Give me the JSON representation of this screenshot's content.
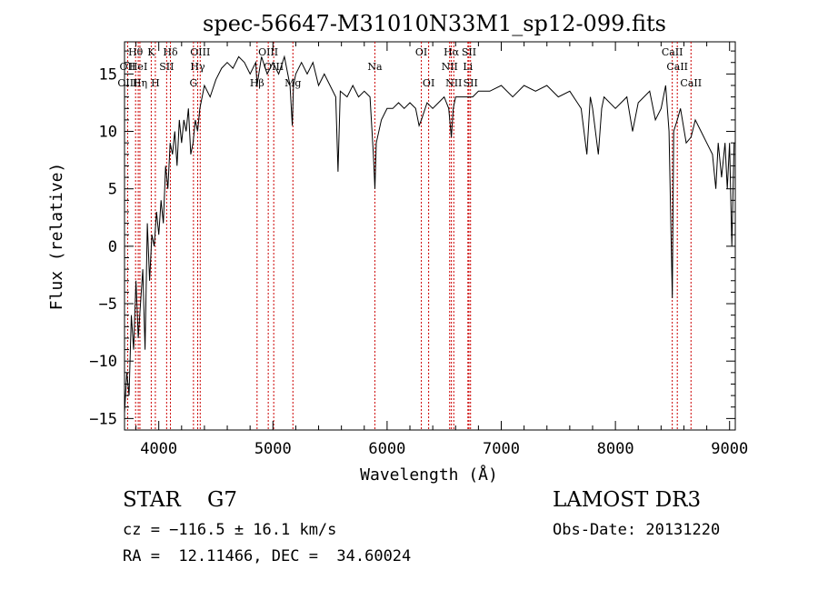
{
  "chart_data": {
    "type": "line",
    "title": "spec-56647-M31010N33M1_sp12-099.fits",
    "xlabel": "Wavelength (Å)",
    "ylabel": "Flux (relative)",
    "xlim": [
      3700,
      9050
    ],
    "ylim": [
      -16,
      17.8
    ],
    "xticks": [
      4000,
      5000,
      6000,
      7000,
      8000,
      9000
    ],
    "yticks": [
      -15,
      -10,
      -5,
      0,
      5,
      10,
      15
    ],
    "x_minor_step": 200,
    "y_minor_step": 1,
    "grid": false,
    "line_color": "#000000",
    "marker_color": "#cc0000",
    "spectrum": [
      [
        3700,
        -14.5
      ],
      [
        3720,
        -11
      ],
      [
        3740,
        -13
      ],
      [
        3760,
        -6
      ],
      [
        3780,
        -9
      ],
      [
        3800,
        -3
      ],
      [
        3820,
        -8
      ],
      [
        3840,
        -5
      ],
      [
        3860,
        -2
      ],
      [
        3880,
        -9
      ],
      [
        3900,
        2
      ],
      [
        3920,
        -3
      ],
      [
        3940,
        1
      ],
      [
        3960,
        0
      ],
      [
        3980,
        3
      ],
      [
        4000,
        1
      ],
      [
        4020,
        4
      ],
      [
        4040,
        2
      ],
      [
        4060,
        7
      ],
      [
        4080,
        5
      ],
      [
        4100,
        9
      ],
      [
        4120,
        8
      ],
      [
        4140,
        10
      ],
      [
        4160,
        7
      ],
      [
        4180,
        11
      ],
      [
        4200,
        9
      ],
      [
        4220,
        11
      ],
      [
        4240,
        10
      ],
      [
        4260,
        12
      ],
      [
        4280,
        8
      ],
      [
        4300,
        9
      ],
      [
        4320,
        11
      ],
      [
        4340,
        10
      ],
      [
        4360,
        12
      ],
      [
        4380,
        13
      ],
      [
        4400,
        14
      ],
      [
        4450,
        13
      ],
      [
        4500,
        14.5
      ],
      [
        4550,
        15.5
      ],
      [
        4600,
        16
      ],
      [
        4650,
        15.5
      ],
      [
        4700,
        16.5
      ],
      [
        4750,
        16
      ],
      [
        4800,
        15
      ],
      [
        4850,
        16
      ],
      [
        4861,
        14
      ],
      [
        4900,
        16.5
      ],
      [
        4950,
        15
      ],
      [
        5000,
        16
      ],
      [
        5050,
        15
      ],
      [
        5100,
        16.5
      ],
      [
        5150,
        14
      ],
      [
        5170,
        10.5
      ],
      [
        5180,
        14
      ],
      [
        5200,
        15
      ],
      [
        5250,
        16
      ],
      [
        5300,
        15
      ],
      [
        5350,
        16
      ],
      [
        5400,
        14
      ],
      [
        5450,
        15
      ],
      [
        5500,
        14
      ],
      [
        5550,
        13
      ],
      [
        5570,
        6.5
      ],
      [
        5590,
        13.5
      ],
      [
        5650,
        13
      ],
      [
        5700,
        14
      ],
      [
        5750,
        13
      ],
      [
        5800,
        13.5
      ],
      [
        5850,
        13
      ],
      [
        5880,
        8
      ],
      [
        5893,
        5
      ],
      [
        5905,
        9
      ],
      [
        5950,
        11
      ],
      [
        6000,
        12
      ],
      [
        6050,
        12
      ],
      [
        6100,
        12.5
      ],
      [
        6150,
        12
      ],
      [
        6200,
        12.5
      ],
      [
        6250,
        12
      ],
      [
        6280,
        10.5
      ],
      [
        6300,
        11
      ],
      [
        6350,
        12.5
      ],
      [
        6400,
        12
      ],
      [
        6450,
        12.5
      ],
      [
        6500,
        13
      ],
      [
        6540,
        12
      ],
      [
        6563,
        9.5
      ],
      [
        6580,
        12
      ],
      [
        6600,
        13
      ],
      [
        6650,
        13
      ],
      [
        6700,
        13
      ],
      [
        6750,
        13
      ],
      [
        6800,
        13.5
      ],
      [
        6900,
        13.5
      ],
      [
        7000,
        14
      ],
      [
        7100,
        13
      ],
      [
        7200,
        14
      ],
      [
        7300,
        13.5
      ],
      [
        7400,
        14
      ],
      [
        7500,
        13
      ],
      [
        7600,
        13.5
      ],
      [
        7700,
        12
      ],
      [
        7750,
        8
      ],
      [
        7780,
        13
      ],
      [
        7800,
        12
      ],
      [
        7850,
        8
      ],
      [
        7880,
        12
      ],
      [
        7900,
        13
      ],
      [
        8000,
        12
      ],
      [
        8100,
        13
      ],
      [
        8150,
        10
      ],
      [
        8200,
        12.5
      ],
      [
        8300,
        13.5
      ],
      [
        8350,
        11
      ],
      [
        8400,
        12
      ],
      [
        8440,
        14
      ],
      [
        8470,
        10
      ],
      [
        8498,
        -4.5
      ],
      [
        8510,
        10
      ],
      [
        8542,
        11
      ],
      [
        8570,
        12
      ],
      [
        8620,
        9
      ],
      [
        8662,
        9.5
      ],
      [
        8700,
        11
      ],
      [
        8750,
        10
      ],
      [
        8800,
        9
      ],
      [
        8850,
        8
      ],
      [
        8880,
        5
      ],
      [
        8900,
        9
      ],
      [
        8930,
        6
      ],
      [
        8960,
        9
      ],
      [
        8980,
        5
      ],
      [
        9000,
        9
      ],
      [
        9020,
        0
      ],
      [
        9040,
        9
      ]
    ],
    "line_markers": [
      {
        "label": "Hθ",
        "x": 3797,
        "row": 0
      },
      {
        "label": "OII",
        "x": 3727,
        "row": 1
      },
      {
        "label": "HeI",
        "x": 3820,
        "row": 1
      },
      {
        "label": "OIII",
        "x": 3727,
        "row": 2
      },
      {
        "label": "Hη",
        "x": 3835,
        "row": 2
      },
      {
        "label": "K",
        "x": 3934,
        "row": 0
      },
      {
        "label": "SII",
        "x": 4069,
        "row": 1
      },
      {
        "label": "H",
        "x": 3970,
        "row": 2
      },
      {
        "label": "Hδ",
        "x": 4102,
        "row": 0
      },
      {
        "label": "OIII",
        "x": 4363,
        "row": 0
      },
      {
        "label": "Hγ",
        "x": 4341,
        "row": 1
      },
      {
        "label": "G",
        "x": 4304,
        "row": 2
      },
      {
        "label": "OIII",
        "x": 4959,
        "row": 0
      },
      {
        "label": "OIII",
        "x": 5007,
        "row": 1
      },
      {
        "label": "Hβ",
        "x": 4861,
        "row": 2
      },
      {
        "label": "Mg",
        "x": 5175,
        "row": 2
      },
      {
        "label": "Na",
        "x": 5893,
        "row": 1
      },
      {
        "label": "OI",
        "x": 6300,
        "row": 0
      },
      {
        "label": "OI",
        "x": 6364,
        "row": 2
      },
      {
        "label": "Hα",
        "x": 6563,
        "row": 0
      },
      {
        "label": "SII",
        "x": 6717,
        "row": 0
      },
      {
        "label": "NII",
        "x": 6548,
        "row": 1
      },
      {
        "label": "Li",
        "x": 6708,
        "row": 1
      },
      {
        "label": "NII",
        "x": 6584,
        "row": 2
      },
      {
        "label": "SII",
        "x": 6731,
        "row": 2
      },
      {
        "label": "CaII",
        "x": 8498,
        "row": 0
      },
      {
        "label": "CaII",
        "x": 8542,
        "row": 1
      },
      {
        "label": "CaII",
        "x": 8662,
        "row": 2
      }
    ]
  },
  "info": {
    "spec_class": "STAR    G7",
    "survey": "LAMOST DR3",
    "cz": "cz = −116.5 ± 16.1 km/s",
    "obs_date": "Obs-Date: 20131220",
    "radec": "RA =  12.11466, DEC =  34.60024"
  }
}
